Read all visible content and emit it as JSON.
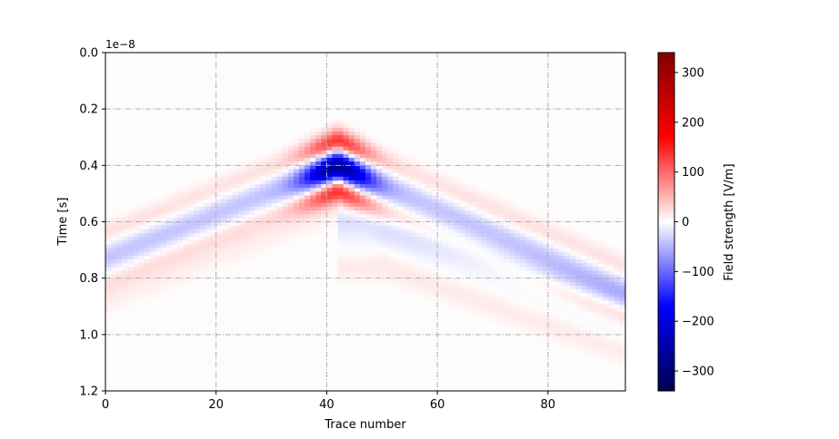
{
  "chart_data": {
    "type": "heatmap",
    "title": "",
    "xlabel": "Trace number",
    "ylabel": "Time [s]",
    "y_offset_label": "1e−8",
    "xlim": [
      0,
      94
    ],
    "ylim": [
      1.2,
      0.0
    ],
    "y_scale_exponent": -8,
    "x_ticks": [
      0,
      20,
      40,
      60,
      80
    ],
    "x_tick_labels": [
      "0",
      "20",
      "40",
      "60",
      "80"
    ],
    "y_ticks": [
      0.0,
      0.2,
      0.4,
      0.6,
      0.8,
      1.0,
      1.2
    ],
    "y_tick_labels": [
      "0.0",
      "0.2",
      "0.4",
      "0.6",
      "0.8",
      "1.0",
      "1.2"
    ],
    "grid": true,
    "grid_style": "dash-dot",
    "colormap": "seismic",
    "colorbar": {
      "label": "Field strength [V/m]",
      "vmin": -340,
      "vmax": 340,
      "ticks": [
        300,
        200,
        100,
        0,
        -100,
        -200,
        -300
      ],
      "tick_labels": [
        "300",
        "200",
        "100",
        "0",
        "−100",
        "−200",
        "−300"
      ]
    },
    "features": {
      "apex_trace": 42,
      "apex_time": 0.37,
      "direct_wave_left_time_at_trace_0": 0.73,
      "direct_wave_right_time_at_trace_94": 0.85,
      "peak_negative_value": -330,
      "peak_positive_value": 250
    }
  }
}
